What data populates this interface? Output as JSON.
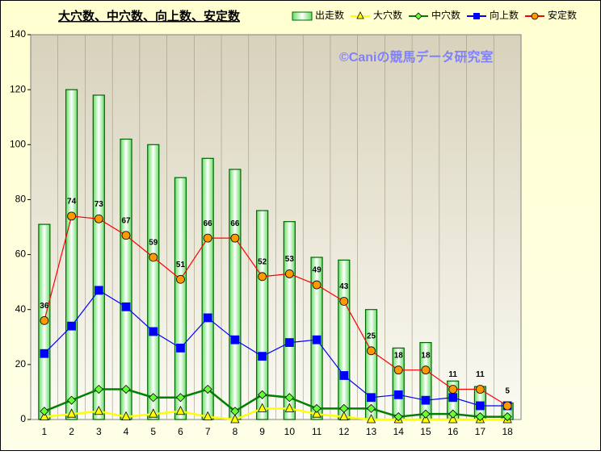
{
  "chart_data": {
    "type": "combo",
    "title": "大穴数、中穴数、向上数、安定数",
    "watermark": "©Caniの競馬データ研究室",
    "categories": [
      "1",
      "2",
      "3",
      "4",
      "5",
      "6",
      "7",
      "8",
      "9",
      "10",
      "11",
      "12",
      "13",
      "14",
      "15",
      "16",
      "17",
      "18"
    ],
    "ylim": [
      0,
      140
    ],
    "yticks": [
      0,
      20,
      40,
      60,
      80,
      100,
      120,
      140
    ],
    "grid": "vertical",
    "series": [
      {
        "name": "出走数",
        "type": "bar",
        "color": "#006600",
        "values": [
          71,
          120,
          118,
          102,
          100,
          88,
          95,
          91,
          76,
          72,
          59,
          58,
          40,
          26,
          28,
          14,
          12,
          6
        ]
      },
      {
        "name": "大穴数",
        "type": "line",
        "marker": "triangle",
        "color": "#ffff00",
        "values": [
          1,
          2,
          3,
          1,
          2,
          3,
          1,
          0,
          4,
          4,
          2,
          1,
          0,
          0,
          0,
          0,
          0,
          0
        ]
      },
      {
        "name": "中穴数",
        "type": "line",
        "marker": "diamond",
        "color": "#008000",
        "values": [
          3,
          7,
          11,
          11,
          8,
          8,
          11,
          3,
          9,
          8,
          4,
          4,
          4,
          1,
          2,
          2,
          1,
          1
        ]
      },
      {
        "name": "向上数",
        "type": "line",
        "marker": "square",
        "color": "#0000ff",
        "values": [
          24,
          34,
          47,
          41,
          32,
          26,
          37,
          29,
          23,
          28,
          29,
          16,
          8,
          9,
          7,
          8,
          5,
          5
        ]
      },
      {
        "name": "安定数",
        "type": "line",
        "marker": "circle",
        "color": "#ff0000",
        "data_labels": true,
        "values": [
          36,
          74,
          73,
          67,
          59,
          51,
          66,
          66,
          52,
          53,
          49,
          43,
          25,
          18,
          18,
          11,
          11,
          5
        ]
      }
    ]
  }
}
